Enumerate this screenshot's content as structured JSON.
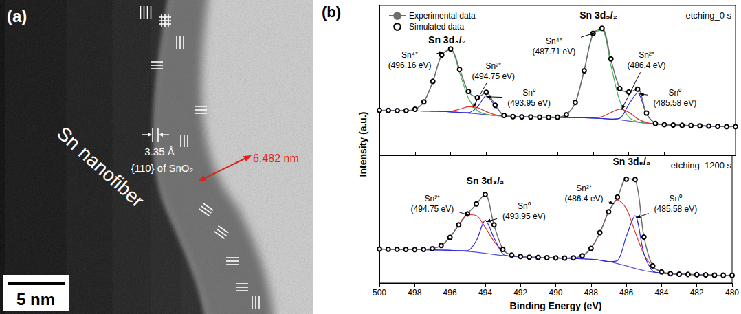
{
  "image_panel": {
    "panel_label": "(a)",
    "fiber_label": "Sn nanofiber",
    "spacing": "3.35 Å",
    "plane": "{110} of SnO₂",
    "thickness": "6.482 nm",
    "scale_bar": "5 nm"
  },
  "chart_data": {
    "type": "line",
    "panel_label": "(b)",
    "xlabel": "Binding Energy (eV)",
    "ylabel": "Intensity (a.u.)",
    "xlim": [
      500,
      480
    ],
    "xticks": [
      500,
      498,
      496,
      494,
      492,
      490,
      488,
      486,
      484,
      482,
      480
    ],
    "grid": false,
    "legend": "upper left",
    "tick_labels": "x",
    "x": [
      480,
      480.5,
      481,
      481.5,
      482,
      482.5,
      483,
      483.5,
      484,
      484.5,
      485,
      485.5,
      486,
      486.5,
      487,
      487.5,
      488,
      488.5,
      489,
      489.5,
      490,
      490.5,
      491,
      491.5,
      492,
      492.5,
      493,
      493.5,
      494,
      494.5,
      495,
      495.5,
      496,
      496.5,
      497,
      497.5,
      498,
      498.5,
      499,
      499.5,
      500
    ],
    "panels": [
      {
        "title": "etching_0 s",
        "ylim": [
          0,
          110
        ],
        "peak_titles": [
          {
            "text": "Sn 3d₃/₂",
            "at": [
              496.2,
              85
            ]
          },
          {
            "text": "Sn 3d₅/₂",
            "at": [
              487.7,
              103
            ]
          }
        ],
        "series": [
          {
            "name": "Experimental data",
            "color": "#6e6e6e",
            "line_style": "solid",
            "marker": "none",
            "values": [
              21.2,
              20.9,
              21.3,
              21.3,
              21.7,
              21.7,
              22.1,
              22.3,
              22.4,
              23.5,
              30.6,
              48.9,
              46.2,
              49.4,
              70.3,
              93.5,
              89.2,
              62.5,
              38.5,
              30.1,
              27.8,
              28.1,
              27.9,
              28.2,
              28.1,
              28.6,
              29.1,
              37.0,
              46.0,
              42.7,
              46.6,
              63.4,
              77.8,
              73.9,
              54.0,
              39.5,
              33.6,
              32.9,
              32.7,
              33.0,
              32.9
            ]
          },
          {
            "name": "Simulated data",
            "color": "#000000",
            "line_style": "none",
            "marker": "circle",
            "values": [
              21,
              21,
              21.2,
              21.4,
              21.6,
              21.8,
              22,
              22.2,
              22.5,
              23.3,
              31.0,
              48.6,
              46.5,
              49.0,
              70.8,
              93.2,
              89.6,
              62.1,
              38.8,
              29.8,
              28.0,
              27.9,
              28,
              28.1,
              28.2,
              28.4,
              29.3,
              36.7,
              46.3,
              42.4,
              46.9,
              63.1,
              78.1,
              73.7,
              54.3,
              39.2,
              33.8,
              32.8,
              32.8,
              32.9,
              33
            ]
          }
        ],
        "fit_components": [
          {
            "color": "#5b4fd6",
            "values": [
              21,
              21,
              21.2,
              21.4,
              21.6,
              21.8,
              22,
              22.2,
              22.5,
              22.9,
              23.5,
              24.3,
              25.2,
              26.0,
              26.6,
              27.0,
              27.3,
              27.5,
              27.6,
              27.7,
              27.8,
              27.9,
              28,
              28.1,
              28.2,
              28.4,
              28.7,
              29.2,
              29.8,
              30.4,
              31.0,
              31.5,
              31.9,
              32.2,
              32.4,
              32.5,
              32.6,
              32.7,
              32.8,
              32.9,
              33
            ]
          },
          {
            "color": "#3cb44b",
            "values": [
              21,
              21,
              21.2,
              21.4,
              21.6,
              21.8,
              22,
              22.2,
              22.5,
              22.9,
              23.5,
              24.6,
              28.1,
              39.9,
              66.0,
              91.8,
              89.4,
              62.1,
              38.8,
              29.8,
              28.0,
              27.9,
              28,
              28.1,
              28.2,
              28.4,
              28.7,
              29.2,
              30.1,
              32.8,
              42.0,
              60.8,
              77.6,
              73.7,
              54.3,
              39.2,
              33.8,
              32.8,
              32.8,
              32.9,
              33
            ]
          },
          {
            "color": "#e8312a",
            "values": [
              21,
              21,
              21.2,
              21.4,
              21.6,
              21.8,
              22,
              22.2,
              22.5,
              22.9,
              24.0,
              26.8,
              31.6,
              33.9,
              31.4,
              28.4,
              27.5,
              27.5,
              27.6,
              27.7,
              27.8,
              27.9,
              28,
              28.1,
              28.2,
              28.4,
              28.7,
              29.7,
              32.1,
              35.0,
              35.6,
              33.8,
              32.4,
              32.2,
              32.4,
              32.5,
              32.6,
              32.7,
              32.8,
              32.9,
              33
            ]
          },
          {
            "color": "#2a2ae0",
            "values": [
              21,
              21,
              21.2,
              21.4,
              21.6,
              21.8,
              22,
              22.2,
              22.5,
              23.3,
              30.5,
              45.8,
              37.2,
              27.2,
              26.6,
              27.0,
              27.3,
              27.5,
              27.6,
              27.7,
              27.8,
              27.9,
              28,
              28.1,
              28.2,
              28.4,
              29.3,
              36.2,
              43.7,
              35.4,
              31.3,
              31.5,
              31.9,
              32.2,
              32.4,
              32.5,
              32.6,
              32.7,
              32.8,
              32.9,
              33
            ]
          }
        ],
        "annotations": [
          {
            "text": "Sn⁴⁺",
            "energy_label": "(496.16 eV)",
            "at": [
              498.3,
              70
            ],
            "tip": [
              496.4,
              76
            ]
          },
          {
            "text": "Sn²⁺",
            "energy_label": "(494.75 eV)",
            "at": [
              493.6,
              62
            ],
            "tip": [
              494.75,
              35
            ]
          },
          {
            "text": "Sn⁰",
            "energy_label": "(493.95 eV)",
            "at": [
              491.6,
              42
            ],
            "tip": [
              494.0,
              43
            ]
          },
          {
            "text": "Sn⁴⁺",
            "energy_label": "(487.71 eV)",
            "at": [
              490.2,
              80
            ],
            "tip": [
              487.9,
              90
            ]
          },
          {
            "text": "Sn²⁺",
            "energy_label": "(486.4 eV)",
            "at": [
              485.0,
              70
            ],
            "tip": [
              486.4,
              33.5
            ]
          },
          {
            "text": "Sn⁰",
            "energy_label": "(485.58 eV)",
            "at": [
              483.4,
              42
            ],
            "tip": [
              485.4,
              45
            ]
          }
        ]
      },
      {
        "title": "etching_1200 s",
        "ylim": [
          0,
          100
        ],
        "peak_titles": [
          {
            "text": "Sn 3d₃/₂",
            "at": [
              494.0,
              80
            ]
          },
          {
            "text": "Sn 3d₅/₂",
            "at": [
              485.7,
              95
            ]
          }
        ],
        "series": [
          {
            "name": "Experimental data",
            "color": "#6e6e6e",
            "line_style": "solid",
            "marker": "none",
            "values": [
              6.2,
              5.9,
              6.3,
              6.3,
              6.7,
              6.7,
              7.1,
              7.3,
              8.9,
              13.2,
              36.4,
              80.7,
              81.6,
              67.0,
              56.1,
              39.2,
              27.4,
              21.2,
              19.9,
              19.5,
              19.8,
              19.8,
              20.2,
              20.2,
              20.9,
              21.7,
              26.7,
              45.3,
              69.7,
              61.7,
              54.4,
              45.3,
              36.0,
              29.2,
              27.0,
              26.2,
              26.3,
              26.2,
              26.5,
              26.4,
              26.7
            ]
          },
          {
            "name": "Simulated data",
            "color": "#000000",
            "line_style": "none",
            "marker": "circle",
            "values": [
              6,
              6.1,
              6.2,
              6.4,
              6.6,
              6.8,
              7.0,
              7.4,
              8.7,
              13.5,
              36.0,
              81.1,
              81.3,
              67.3,
              55.8,
              39.5,
              27.1,
              21.4,
              19.8,
              19.6,
              19.7,
              19.9,
              20.1,
              20.3,
              20.8,
              21.9,
              26.4,
              45.6,
              69.4,
              62.0,
              54.1,
              45.6,
              35.8,
              29.4,
              26.9,
              26.3,
              26.2,
              26.3,
              26.4,
              26.5,
              26.6
            ]
          }
        ],
        "fit_components": [
          {
            "color": "#5b4fd6",
            "values": [
              6,
              6.1,
              6.2,
              6.4,
              6.6,
              6.8,
              7.0,
              7.3,
              7.8,
              8.6,
              9.8,
              11.5,
              13.5,
              15.3,
              16.8,
              17.9,
              18.6,
              19.0,
              19.3,
              19.5,
              19.7,
              19.9,
              20.1,
              20.3,
              20.6,
              21.0,
              21.6,
              22.4,
              23.3,
              24.1,
              24.8,
              25.3,
              25.6,
              25.8,
              26.0,
              26.1,
              26.2,
              26.3,
              26.4,
              26.5,
              26.6
            ]
          },
          {
            "color": "#e8312a",
            "values": [
              6,
              6.1,
              6.2,
              6.4,
              6.6,
              6.8,
              7.0,
              7.4,
              8.7,
              12.7,
              22.7,
              40.0,
              58.3,
              65.0,
              55.8,
              39.5,
              27.1,
              21.4,
              19.8,
              19.6,
              19.7,
              19.9,
              20.1,
              20.3,
              20.8,
              21.9,
              25.2,
              32.6,
              43.6,
              52.8,
              53.5,
              45.6,
              35.8,
              29.4,
              26.9,
              26.3,
              26.2,
              26.3,
              26.4,
              26.5,
              26.6
            ]
          },
          {
            "color": "#2a2ae0",
            "values": [
              6,
              6.1,
              6.2,
              6.4,
              6.6,
              6.8,
              7.0,
              7.3,
              7.8,
              9.4,
              23.1,
              52.6,
              36.5,
              17.6,
              16.8,
              17.9,
              18.6,
              19.0,
              19.3,
              19.5,
              19.7,
              19.9,
              20.1,
              20.3,
              20.6,
              21.0,
              22.8,
              35.4,
              49.1,
              33.3,
              25.4,
              25.3,
              25.6,
              25.8,
              26.0,
              26.1,
              26.2,
              26.3,
              26.4,
              26.5,
              26.6
            ]
          }
        ],
        "annotations": [
          {
            "text": "Sn²⁺",
            "energy_label": "(494.75 eV)",
            "at": [
              497.0,
              62
            ],
            "tip": [
              494.9,
              53
            ]
          },
          {
            "text": "Sn⁰",
            "energy_label": "(493.95 eV)",
            "at": [
              491.8,
              56
            ],
            "tip": [
              493.95,
              48
            ]
          },
          {
            "text": "Sn²⁺",
            "energy_label": "(486.4 eV)",
            "at": [
              488.4,
              70
            ],
            "tip": [
              486.7,
              62
            ]
          },
          {
            "text": "Sn⁰",
            "energy_label": "(485.58 eV)",
            "at": [
              483.2,
              62
            ],
            "tip": [
              485.45,
              51
            ]
          }
        ]
      }
    ]
  }
}
